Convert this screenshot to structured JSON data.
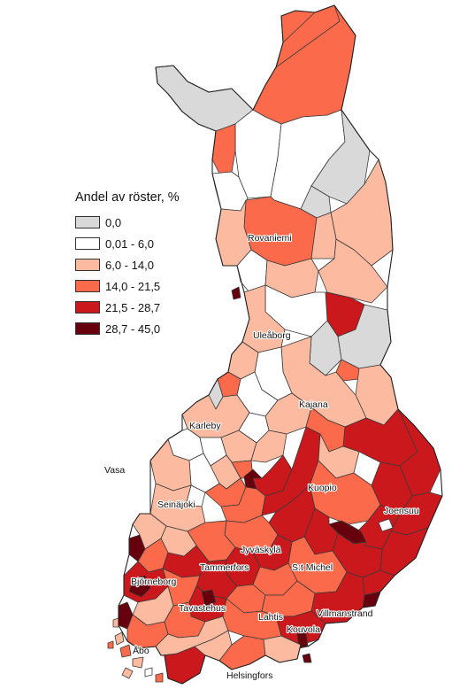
{
  "legend": {
    "title": "Andel av röster, %",
    "classes": [
      {
        "label": "0,0",
        "color": "#d9d9d9"
      },
      {
        "label": "0,01 - 6,0",
        "color": "#ffffff"
      },
      {
        "label": "6,0 - 14,0",
        "color": "#fcbba1"
      },
      {
        "label": "14,0 - 21,5",
        "color": "#fb6a4a"
      },
      {
        "label": "21,5 - 28,7",
        "color": "#cb181d"
      },
      {
        "label": "28,7 - 45,0",
        "color": "#67000d"
      }
    ]
  },
  "cities": [
    "Rovaniemi",
    "Uleåborg",
    "Kajana",
    "Karleby",
    "Vasa",
    "Kuopio",
    "Joensuu",
    "Seinäjoki",
    "Jyväskylä",
    "Tammerfors",
    "S:t Michel",
    "Björneborg",
    "Tavastehus",
    "Villmanstrand",
    "Lahtis",
    "Kouvola",
    "Åbo",
    "Helsingfors"
  ]
}
